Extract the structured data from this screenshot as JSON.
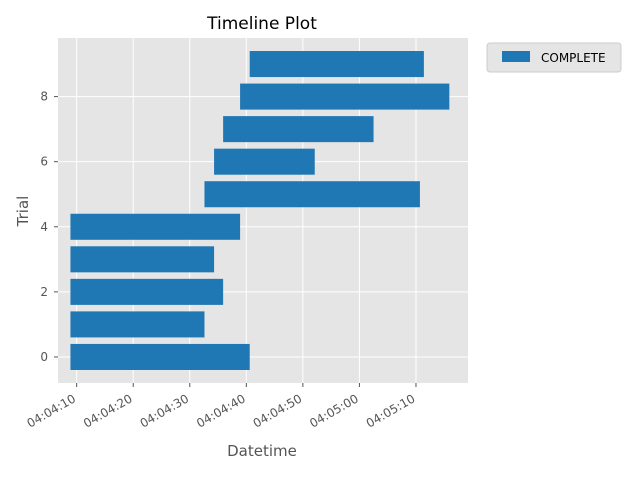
{
  "chart_data": {
    "type": "bar",
    "orientation": "horizontal",
    "title": "Timeline Plot",
    "xlabel": "Datetime",
    "ylabel": "Trial",
    "x_unit": "time-of-day",
    "x_range": [
      "04:04:06.7",
      "04:05:19.2"
    ],
    "y_range": [
      -0.8,
      9.8
    ],
    "x_ticks": [
      "04:04:10",
      "04:04:20",
      "04:04:30",
      "04:04:40",
      "04:04:50",
      "04:05:00",
      "04:05:10"
    ],
    "y_ticks": [
      0,
      2,
      4,
      6,
      8
    ],
    "grid": true,
    "legend_position": "outside-top-right",
    "series": [
      {
        "name": "COMPLETE",
        "color": "#1f77b4",
        "bars": [
          {
            "trial": 0,
            "start": "04:04:08.9",
            "end": "04:04:40.6"
          },
          {
            "trial": 1,
            "start": "04:04:08.9",
            "end": "04:04:32.6"
          },
          {
            "trial": 2,
            "start": "04:04:08.9",
            "end": "04:04:35.9"
          },
          {
            "trial": 3,
            "start": "04:04:08.9",
            "end": "04:04:34.3"
          },
          {
            "trial": 4,
            "start": "04:04:08.9",
            "end": "04:04:38.9"
          },
          {
            "trial": 5,
            "start": "04:04:32.6",
            "end": "04:05:10.7"
          },
          {
            "trial": 6,
            "start": "04:04:34.3",
            "end": "04:04:52.1"
          },
          {
            "trial": 7,
            "start": "04:04:35.9",
            "end": "04:05:02.5"
          },
          {
            "trial": 8,
            "start": "04:04:38.9",
            "end": "04:05:15.9"
          },
          {
            "trial": 9,
            "start": "04:04:40.6",
            "end": "04:05:11.4"
          }
        ]
      }
    ]
  },
  "colors": {
    "plot_background": "#e5e5e5",
    "grid": "#ffffff",
    "bar": "#1f77b4"
  }
}
